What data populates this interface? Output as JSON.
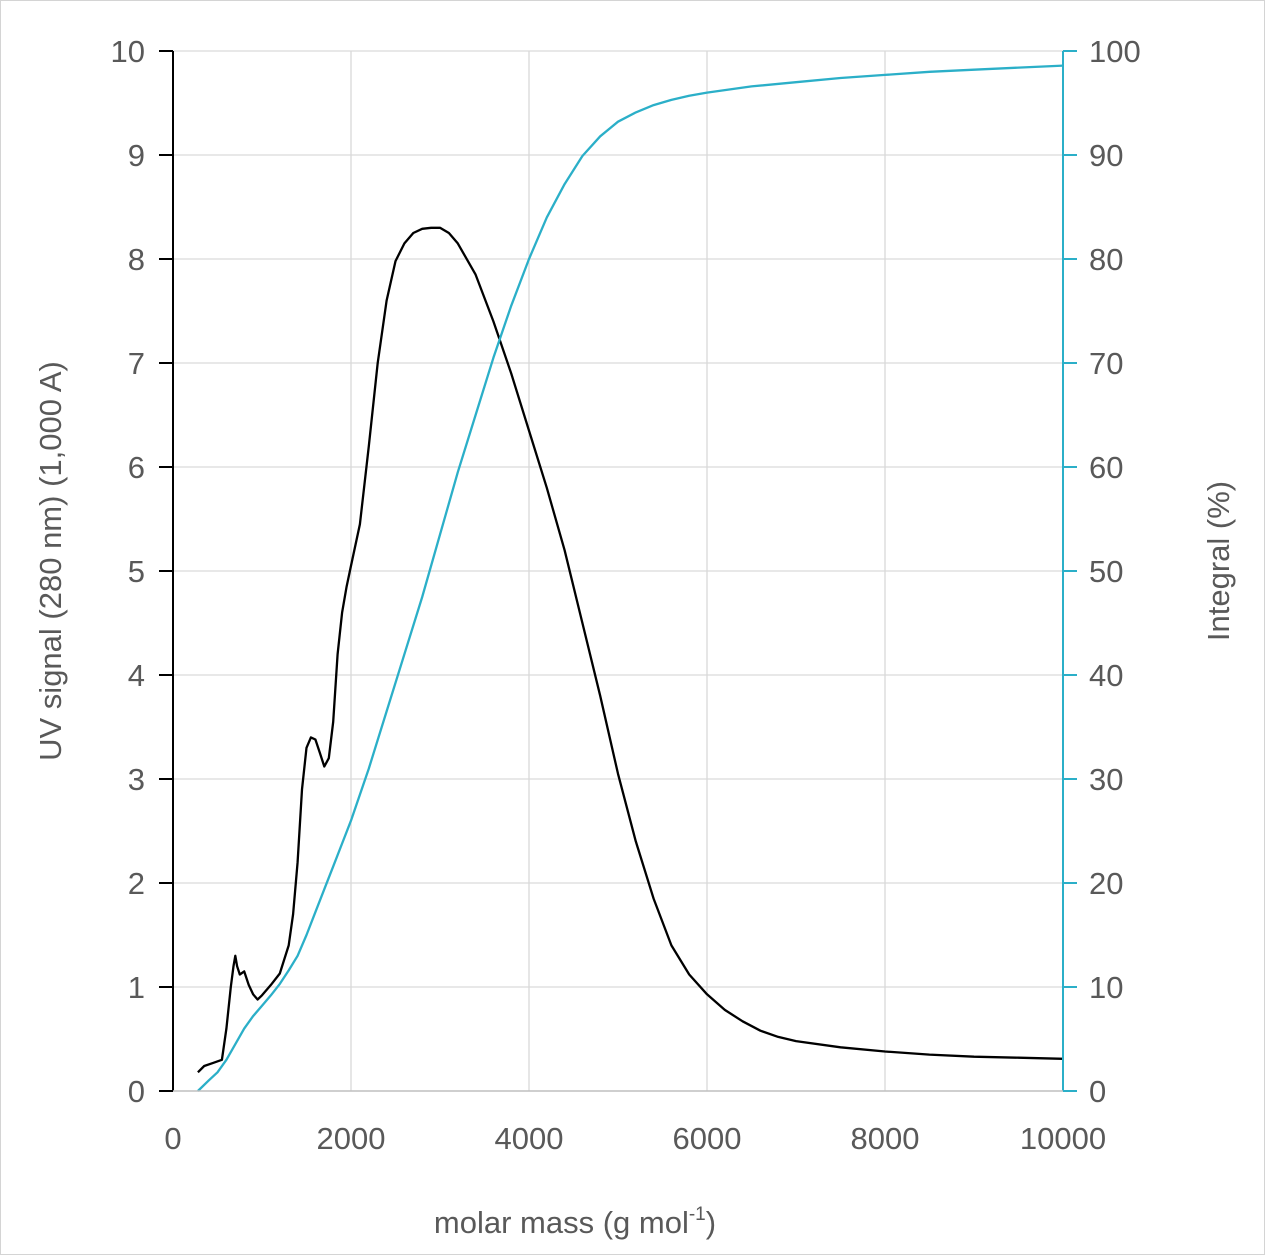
{
  "chart_data": {
    "type": "line",
    "title": "",
    "xlabel": "molar mass (g mol",
    "xlabel_superscript": "-1",
    "xlabel_suffix": ")",
    "ylabel_left": "UV signal (280 nm) (1,000 A)",
    "ylabel_right": "Integral (%)",
    "xlim": [
      0,
      10000
    ],
    "ylim_left": [
      0,
      10
    ],
    "ylim_right": [
      0,
      100
    ],
    "x_ticks": [
      "0",
      "2000",
      "4000",
      "6000",
      "8000",
      "10000"
    ],
    "y_left_ticks": [
      "0",
      "1",
      "2",
      "3",
      "4",
      "5",
      "6",
      "7",
      "8",
      "9",
      "10"
    ],
    "y_right_ticks": [
      "0",
      "10",
      "20",
      "30",
      "40",
      "50",
      "60",
      "70",
      "80",
      "90",
      "100"
    ],
    "grid": true,
    "colors": {
      "uv": "#000000",
      "integral": "#2bafc8",
      "grid": "#d9d9d9",
      "axis_left": "#000000",
      "axis_right": "#2bafc8"
    },
    "series": [
      {
        "name": "UV signal",
        "axis": "left",
        "x": [
          280,
          350,
          450,
          550,
          600,
          650,
          680,
          700,
          720,
          750,
          800,
          850,
          900,
          950,
          1000,
          1100,
          1200,
          1300,
          1350,
          1400,
          1450,
          1500,
          1550,
          1600,
          1650,
          1700,
          1750,
          1800,
          1850,
          1900,
          1950,
          2000,
          2100,
          2200,
          2300,
          2400,
          2500,
          2600,
          2700,
          2800,
          2900,
          3000,
          3100,
          3200,
          3400,
          3600,
          3800,
          4000,
          4200,
          4400,
          4600,
          4800,
          5000,
          5200,
          5400,
          5600,
          5800,
          6000,
          6200,
          6400,
          6600,
          6800,
          7000,
          7500,
          8000,
          8500,
          9000,
          9500,
          10000
        ],
        "y": [
          0.18,
          0.24,
          0.27,
          0.3,
          0.6,
          1.0,
          1.2,
          1.3,
          1.2,
          1.12,
          1.15,
          1.02,
          0.93,
          0.88,
          0.92,
          1.02,
          1.13,
          1.4,
          1.7,
          2.2,
          2.9,
          3.3,
          3.4,
          3.38,
          3.25,
          3.12,
          3.2,
          3.55,
          4.2,
          4.6,
          4.85,
          5.05,
          5.45,
          6.2,
          7.0,
          7.6,
          7.98,
          8.15,
          8.25,
          8.29,
          8.3,
          8.3,
          8.25,
          8.15,
          7.85,
          7.4,
          6.9,
          6.35,
          5.8,
          5.2,
          4.5,
          3.8,
          3.05,
          2.4,
          1.85,
          1.4,
          1.12,
          0.93,
          0.78,
          0.67,
          0.58,
          0.52,
          0.48,
          0.42,
          0.38,
          0.35,
          0.33,
          0.32,
          0.31
        ]
      },
      {
        "name": "Integral",
        "axis": "right",
        "x": [
          280,
          400,
          500,
          600,
          700,
          800,
          900,
          1000,
          1100,
          1200,
          1300,
          1400,
          1500,
          1600,
          1700,
          1800,
          1900,
          2000,
          2200,
          2400,
          2600,
          2800,
          3000,
          3200,
          3400,
          3600,
          3800,
          4000,
          4200,
          4400,
          4600,
          4800,
          5000,
          5200,
          5400,
          5600,
          5800,
          6000,
          6500,
          7000,
          7500,
          8000,
          8500,
          9000,
          9500,
          10000
        ],
        "y": [
          0.0,
          1.0,
          1.8,
          3.0,
          4.5,
          6.0,
          7.2,
          8.2,
          9.2,
          10.3,
          11.6,
          13.0,
          15.0,
          17.2,
          19.4,
          21.6,
          23.8,
          26.0,
          31.0,
          36.5,
          42.0,
          47.5,
          53.5,
          59.5,
          65.0,
          70.5,
          75.5,
          80.0,
          84.0,
          87.2,
          89.9,
          91.8,
          93.2,
          94.1,
          94.8,
          95.3,
          95.7,
          96.0,
          96.6,
          97.0,
          97.4,
          97.7,
          98.0,
          98.2,
          98.4,
          98.6
        ]
      }
    ]
  }
}
